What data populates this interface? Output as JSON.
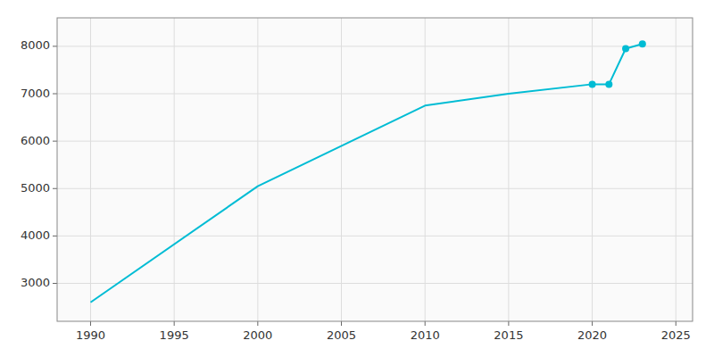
{
  "chart_data": {
    "type": "line",
    "x": [
      1990,
      2000,
      2010,
      2015,
      2020,
      2021,
      2022,
      2023
    ],
    "series": [
      {
        "color": "#00BCD4",
        "values": [
          2600,
          5050,
          6750,
          7000,
          7200,
          7200,
          7950,
          8050
        ]
      },
      {
        "color": "#00BCD4",
        "marker": "circle",
        "line_style": "none",
        "values": [
          null,
          null,
          null,
          null,
          7200,
          7200,
          7950,
          8050
        ]
      }
    ],
    "xlim": [
      1988,
      2026
    ],
    "ylim": [
      2200,
      8600
    ],
    "xticks": [
      1990,
      1995,
      2000,
      2005,
      2010,
      2015,
      2020,
      2025
    ],
    "yticks": [
      3000,
      4000,
      5000,
      6000,
      7000,
      8000
    ],
    "grid": true
  }
}
